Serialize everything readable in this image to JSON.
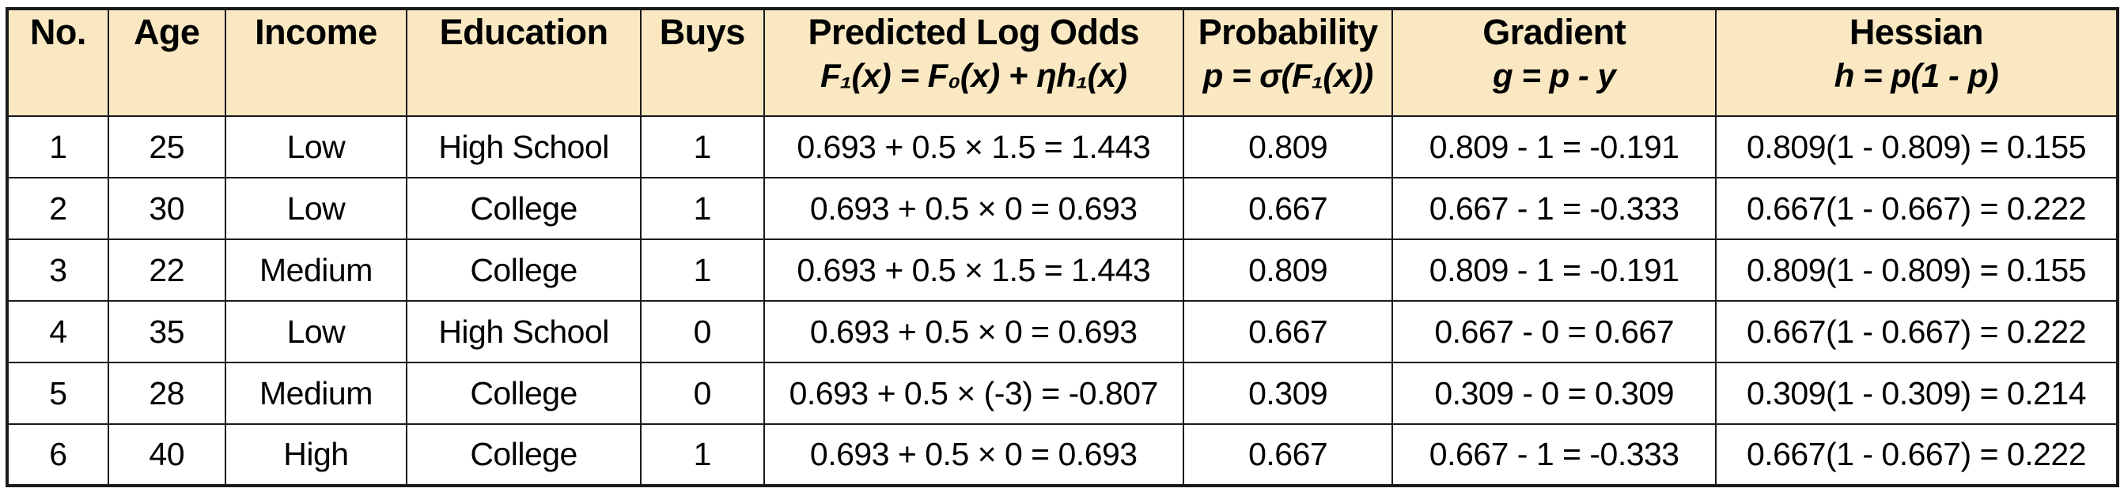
{
  "colors": {
    "header_background": "#F9E8C2",
    "border": "#1A1A1A",
    "text": "#000000",
    "cell_background": "#FFFFFF"
  },
  "chart_data": {
    "type": "table",
    "columns": [
      {
        "id": "no",
        "label": "No.",
        "formula": ""
      },
      {
        "id": "age",
        "label": "Age",
        "formula": ""
      },
      {
        "id": "income",
        "label": "Income",
        "formula": ""
      },
      {
        "id": "education",
        "label": "Education",
        "formula": ""
      },
      {
        "id": "buys",
        "label": "Buys",
        "formula": ""
      },
      {
        "id": "log_odds",
        "label": "Predicted Log Odds",
        "formula": "F₁(x) = F₀(x) + ηh₁(x)"
      },
      {
        "id": "probability",
        "label": "Probability",
        "formula": "p = σ(F₁(x))"
      },
      {
        "id": "gradient",
        "label": "Gradient",
        "formula": "g = p - y"
      },
      {
        "id": "hessian",
        "label": "Hessian",
        "formula": "h = p(1 - p)"
      }
    ],
    "rows": [
      [
        "1",
        "25",
        "Low",
        "High School",
        "1",
        "0.693 + 0.5 × 1.5 = 1.443",
        "0.809",
        "0.809 - 1 = -0.191",
        "0.809(1 - 0.809) = 0.155"
      ],
      [
        "2",
        "30",
        "Low",
        "College",
        "1",
        "0.693 + 0.5 × 0 = 0.693",
        "0.667",
        "0.667 - 1 = -0.333",
        "0.667(1 - 0.667) = 0.222"
      ],
      [
        "3",
        "22",
        "Medium",
        "College",
        "1",
        "0.693 + 0.5 × 1.5 = 1.443",
        "0.809",
        "0.809 - 1 = -0.191",
        "0.809(1 - 0.809) = 0.155"
      ],
      [
        "4",
        "35",
        "Low",
        "High School",
        "0",
        "0.693 + 0.5 × 0 = 0.693",
        "0.667",
        "0.667 - 0 = 0.667",
        "0.667(1 - 0.667) = 0.222"
      ],
      [
        "5",
        "28",
        "Medium",
        "College",
        "0",
        "0.693 + 0.5 × (-3) = -0.807",
        "0.309",
        "0.309 - 0 = 0.309",
        "0.309(1 - 0.309) = 0.214"
      ],
      [
        "6",
        "40",
        "High",
        "College",
        "1",
        "0.693 + 0.5 × 0 = 0.693",
        "0.667",
        "0.667 - 1 = -0.333",
        "0.667(1 - 0.667) = 0.222"
      ]
    ]
  }
}
